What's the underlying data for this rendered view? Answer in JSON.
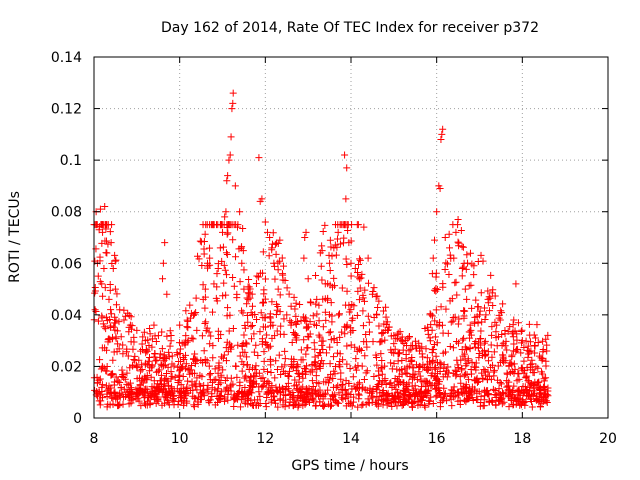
{
  "chart_data": {
    "type": "scatter",
    "title": "Day 162 of 2014, Rate Of TEC Index for receiver p372",
    "xlabel": "GPS time / hours",
    "ylabel": "ROTI / TECUs",
    "xlim": [
      8,
      20
    ],
    "ylim": [
      0,
      0.14
    ],
    "xticks": [
      8,
      10,
      12,
      14,
      16,
      18,
      20
    ],
    "yticks": [
      0,
      0.02,
      0.04,
      0.06,
      0.08,
      0.1,
      0.12,
      0.14
    ],
    "xtick_labels": [
      "8",
      "10",
      "12",
      "14",
      "16",
      "18",
      "20"
    ],
    "ytick_labels": [
      "0",
      "0.02",
      "0.04",
      "0.06",
      "0.08",
      "0.1",
      "0.12",
      "0.14"
    ],
    "grid": true,
    "marker": "+",
    "color": "#ff0000",
    "series": [
      {
        "name": "ROTI",
        "x_range": [
          8.0,
          18.6
        ],
        "note_peaks": "dense band 0.005-0.03 throughout",
        "points": [
          [
            8.05,
            0.08
          ],
          [
            8.15,
            0.081
          ],
          [
            8.25,
            0.082
          ],
          [
            8.12,
            0.073
          ],
          [
            8.2,
            0.072
          ],
          [
            8.08,
            0.06
          ],
          [
            8.3,
            0.064
          ],
          [
            8.4,
            0.068
          ],
          [
            8.45,
            0.058
          ],
          [
            8.5,
            0.05
          ],
          [
            8.1,
            0.055
          ],
          [
            8.18,
            0.052
          ],
          [
            8.35,
            0.046
          ],
          [
            8.6,
            0.042
          ],
          [
            8.7,
            0.038
          ],
          [
            8.85,
            0.036
          ],
          [
            9.0,
            0.034
          ],
          [
            9.2,
            0.03
          ],
          [
            9.4,
            0.036
          ],
          [
            9.6,
            0.054
          ],
          [
            9.62,
            0.06
          ],
          [
            9.65,
            0.068
          ],
          [
            9.7,
            0.048
          ],
          [
            9.8,
            0.032
          ],
          [
            10.0,
            0.036
          ],
          [
            10.2,
            0.03
          ],
          [
            10.4,
            0.034
          ],
          [
            10.55,
            0.046
          ],
          [
            10.6,
            0.05
          ],
          [
            10.65,
            0.06
          ],
          [
            10.7,
            0.062
          ],
          [
            10.8,
            0.052
          ],
          [
            10.9,
            0.058
          ],
          [
            10.95,
            0.066
          ],
          [
            11.0,
            0.072
          ],
          [
            11.05,
            0.078
          ],
          [
            11.08,
            0.08
          ],
          [
            11.1,
            0.092
          ],
          [
            11.12,
            0.094
          ],
          [
            11.15,
            0.1
          ],
          [
            11.18,
            0.102
          ],
          [
            11.2,
            0.109
          ],
          [
            11.22,
            0.12
          ],
          [
            11.24,
            0.122
          ],
          [
            11.25,
            0.126
          ],
          [
            11.3,
            0.09
          ],
          [
            11.35,
            0.074
          ],
          [
            11.4,
            0.08
          ],
          [
            11.45,
            0.06
          ],
          [
            11.5,
            0.05
          ],
          [
            11.6,
            0.046
          ],
          [
            11.7,
            0.04
          ],
          [
            11.85,
            0.101
          ],
          [
            11.88,
            0.084
          ],
          [
            11.92,
            0.085
          ],
          [
            12.0,
            0.076
          ],
          [
            12.05,
            0.072
          ],
          [
            12.1,
            0.07
          ],
          [
            12.15,
            0.066
          ],
          [
            12.2,
            0.06
          ],
          [
            12.3,
            0.05
          ],
          [
            12.4,
            0.056
          ],
          [
            12.5,
            0.04
          ],
          [
            12.6,
            0.036
          ],
          [
            12.8,
            0.044
          ],
          [
            12.9,
            0.062
          ],
          [
            12.92,
            0.07
          ],
          [
            12.95,
            0.072
          ],
          [
            13.0,
            0.054
          ],
          [
            13.2,
            0.046
          ],
          [
            13.4,
            0.052
          ],
          [
            13.5,
            0.06
          ],
          [
            13.6,
            0.066
          ],
          [
            13.7,
            0.072
          ],
          [
            13.85,
            0.102
          ],
          [
            13.9,
            0.097
          ],
          [
            13.88,
            0.085
          ],
          [
            13.95,
            0.068
          ],
          [
            14.0,
            0.06
          ],
          [
            14.1,
            0.058
          ],
          [
            14.2,
            0.054
          ],
          [
            14.3,
            0.074
          ],
          [
            14.4,
            0.062
          ],
          [
            14.5,
            0.048
          ],
          [
            14.6,
            0.04
          ],
          [
            14.8,
            0.034
          ],
          [
            15.0,
            0.032
          ],
          [
            15.2,
            0.03
          ],
          [
            15.4,
            0.028
          ],
          [
            15.6,
            0.026
          ],
          [
            15.8,
            0.034
          ],
          [
            15.9,
            0.056
          ],
          [
            15.92,
            0.062
          ],
          [
            15.95,
            0.069
          ],
          [
            16.0,
            0.08
          ],
          [
            16.05,
            0.09
          ],
          [
            16.08,
            0.089
          ],
          [
            16.1,
            0.108
          ],
          [
            16.12,
            0.11
          ],
          [
            16.14,
            0.112
          ],
          [
            16.2,
            0.07
          ],
          [
            16.3,
            0.066
          ],
          [
            16.4,
            0.062
          ],
          [
            16.45,
            0.072
          ],
          [
            16.5,
            0.077
          ],
          [
            16.6,
            0.058
          ],
          [
            16.7,
            0.046
          ],
          [
            16.8,
            0.034
          ],
          [
            17.0,
            0.04
          ],
          [
            17.2,
            0.046
          ],
          [
            17.4,
            0.036
          ],
          [
            17.6,
            0.028
          ],
          [
            17.8,
            0.038
          ],
          [
            17.85,
            0.052
          ],
          [
            18.0,
            0.03
          ],
          [
            18.2,
            0.026
          ],
          [
            18.4,
            0.024
          ],
          [
            18.55,
            0.022
          ]
        ]
      }
    ]
  }
}
